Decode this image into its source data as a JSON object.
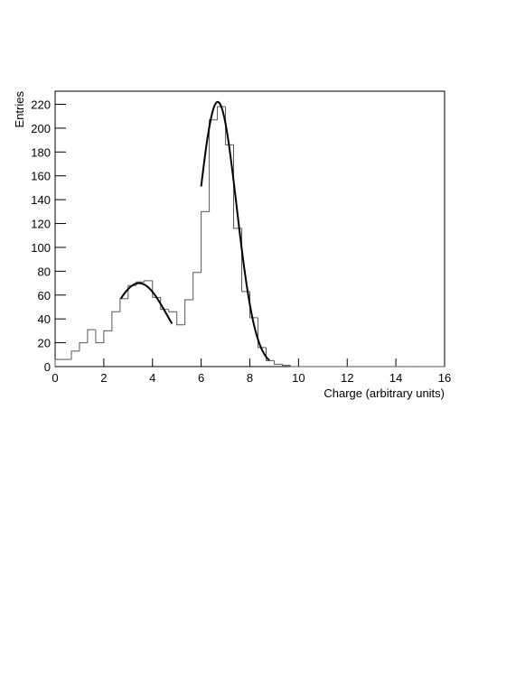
{
  "chart_data": {
    "type": "histogram",
    "x_label": "Charge (arbitrary units)",
    "y_label": "Entries",
    "bins": [
      0,
      0.333,
      0.667,
      1,
      1.333,
      1.667,
      2,
      2.333,
      2.667,
      3,
      3.333,
      3.667,
      4,
      4.333,
      4.667,
      5,
      5.333,
      5.667,
      6,
      6.333,
      6.667,
      7,
      7.333,
      7.667,
      8,
      8.333,
      8.667,
      9,
      9.333,
      9.667,
      10,
      10.333,
      10.667,
      11,
      11.333,
      11.667,
      12,
      12.333,
      12.667,
      13,
      13.333,
      13.667,
      14,
      14.333,
      14.667,
      15,
      15.333,
      15.667,
      16
    ],
    "counts": [
      6,
      6,
      13,
      20,
      31,
      20,
      30,
      46,
      57,
      68,
      71,
      72,
      58,
      48,
      46,
      35,
      56,
      79,
      130,
      207,
      218,
      186,
      116,
      63,
      41,
      16,
      5,
      2,
      1,
      0,
      0,
      0,
      0,
      0,
      0,
      0,
      0,
      0,
      0,
      0,
      0,
      0,
      0,
      0,
      0,
      0,
      0,
      0
    ],
    "color": "#555555",
    "fits": [
      {
        "constant": 70,
        "mean": 3.45,
        "sigma": 1.17,
        "range": [
          2.7,
          4.8
        ]
      },
      {
        "constant": 222,
        "mean": 6.68,
        "sigma": 0.775,
        "range": [
          6.0,
          8.8
        ]
      }
    ],
    "fit_color": "#000000",
    "xlim": [
      0,
      16
    ],
    "xticks": [
      0,
      2,
      4,
      6,
      8,
      10,
      12,
      14,
      16
    ],
    "ylim": [
      0,
      231
    ],
    "yticks": [
      0,
      20,
      40,
      60,
      80,
      100,
      120,
      140,
      160,
      180,
      200,
      220
    ]
  }
}
